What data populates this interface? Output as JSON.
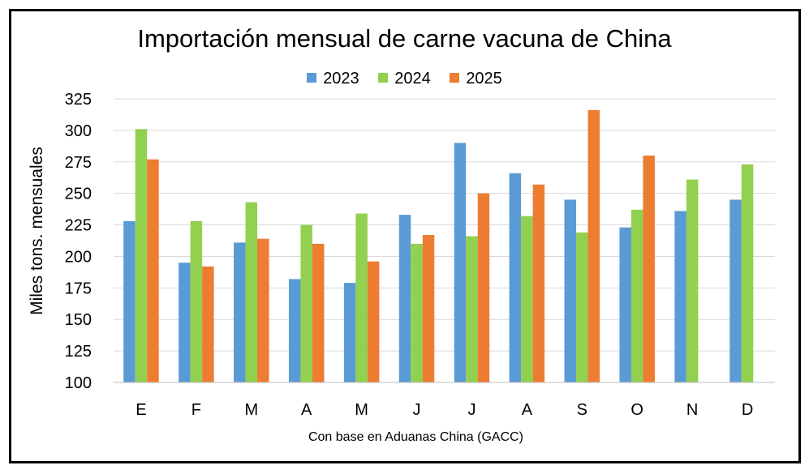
{
  "chart_data": {
    "type": "bar",
    "title": "Importación mensual de carne vacuna de China",
    "xlabel": "Con base en Aduanas China (GACC)",
    "ylabel": "Miles tons. mensuales",
    "ylim": [
      100,
      325
    ],
    "yticks": [
      100,
      125,
      150,
      175,
      200,
      225,
      250,
      275,
      300,
      325
    ],
    "grid": true,
    "legend_position": "top",
    "categories": [
      "E",
      "F",
      "M",
      "A",
      "M",
      "J",
      "J",
      "A",
      "S",
      "O",
      "N",
      "D"
    ],
    "series": [
      {
        "name": "2023",
        "color": "#5b9bd5",
        "values": [
          228,
          195,
          211,
          182,
          179,
          233,
          290,
          266,
          245,
          223,
          236,
          245
        ]
      },
      {
        "name": "2024",
        "color": "#92d050",
        "values": [
          301,
          228,
          243,
          225,
          234,
          210,
          216,
          232,
          219,
          237,
          261,
          273
        ]
      },
      {
        "name": "2025",
        "color": "#ed7d31",
        "values": [
          277,
          192,
          214,
          210,
          196,
          217,
          250,
          257,
          316,
          280,
          null,
          null
        ]
      }
    ]
  }
}
